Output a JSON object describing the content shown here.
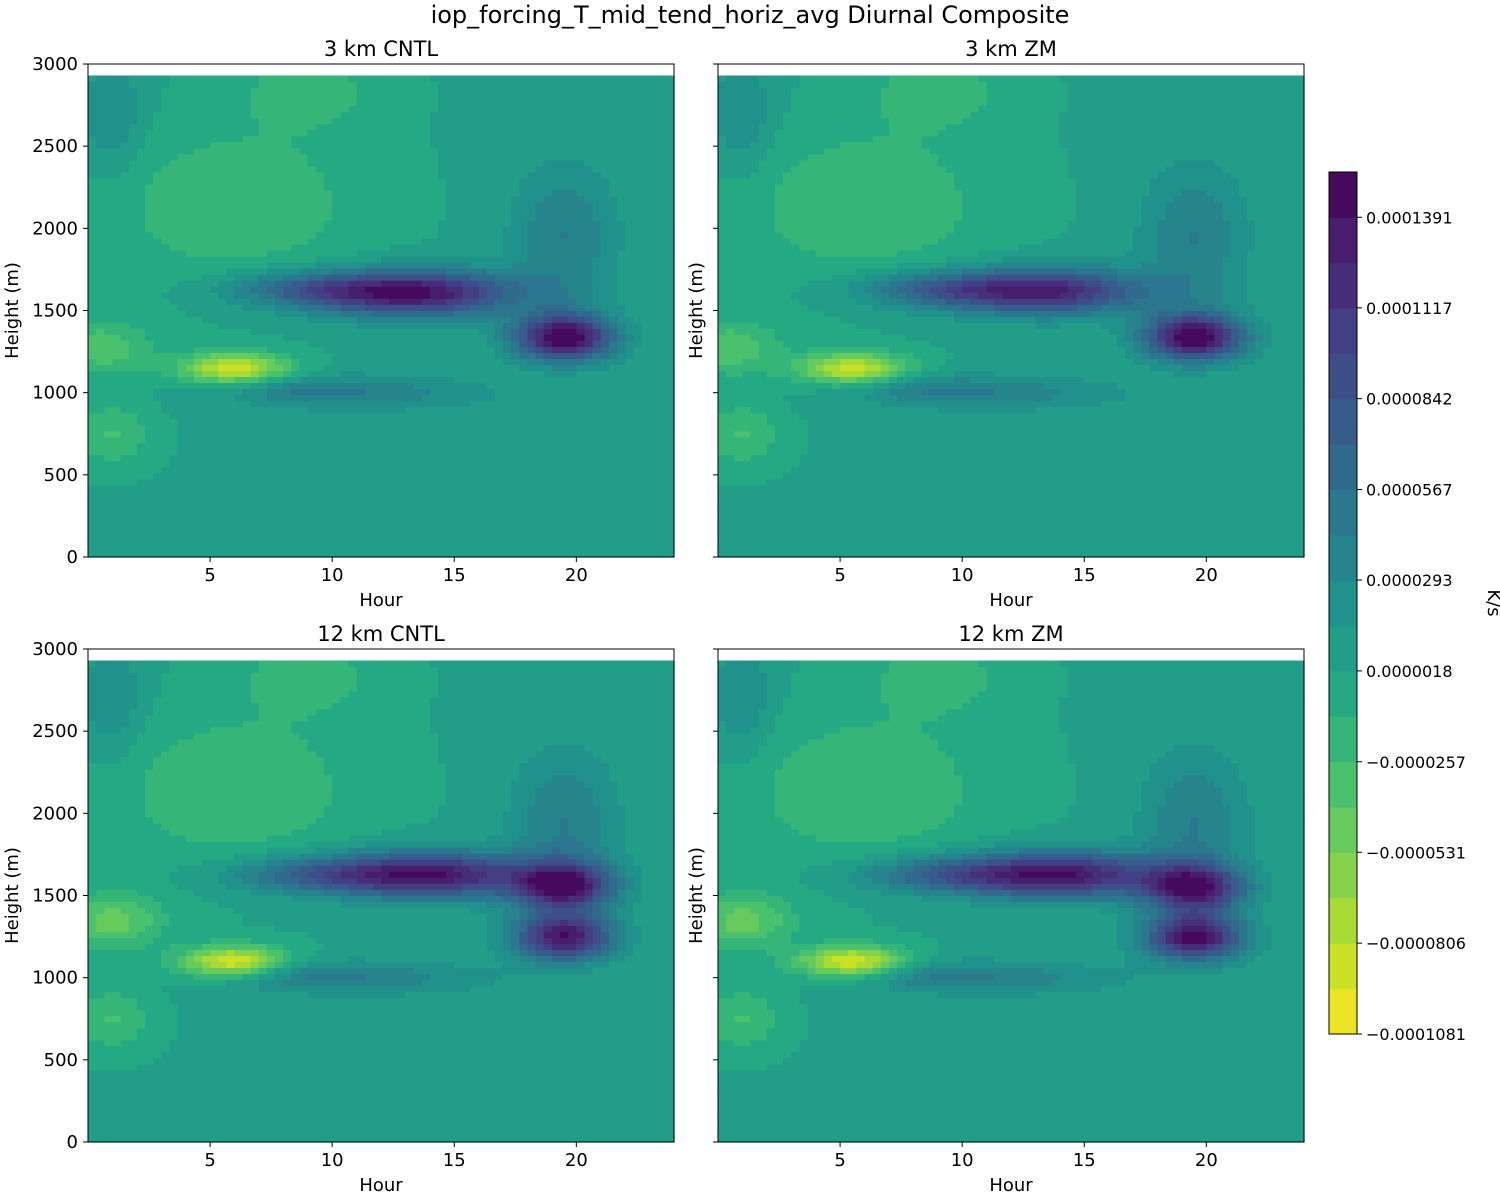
{
  "figure": {
    "title": "iop_forcing_T_mid_tend_horiz_avg Diurnal Composite"
  },
  "colorbar": {
    "label": "K/s",
    "tick_labels": [
      "0.0001391",
      "0.0001117",
      "0.0000842",
      "0.0000567",
      "0.0000293",
      "0.0000018",
      "−0.0000257",
      "−0.0000531",
      "−0.0000806",
      "−0.0001081"
    ],
    "levels_min": -0.0001081,
    "levels_max": 0.0001528,
    "n_bins": 19,
    "colormap": "viridis_r"
  },
  "chart_data": [
    {
      "type": "heatmap",
      "title": "3 km CNTL",
      "xlabel": "Hour",
      "ylabel": "Height (m)",
      "xlim": [
        0,
        24
      ],
      "ylim": [
        0,
        3000
      ],
      "x_ticks": [
        5,
        10,
        15,
        20
      ],
      "y_ticks": [
        0,
        500,
        1000,
        1500,
        2000,
        2500,
        3000
      ],
      "show_y_ticklabels": true,
      "data_top_height": 2930,
      "features": [
        {
          "kind": "warming_max",
          "hour": 13.5,
          "height": 1610,
          "value": 0.000135
        },
        {
          "kind": "warming_max",
          "hour": 19.5,
          "height": 1340,
          "value": 0.000148
        },
        {
          "kind": "cooling_min",
          "hour": 6.0,
          "height": 1150,
          "value": -9.5e-05
        },
        {
          "kind": "cooling_min",
          "hour": 0.5,
          "height": 1280,
          "value": -4e-05
        }
      ]
    },
    {
      "type": "heatmap",
      "title": "3 km ZM",
      "xlabel": "Hour",
      "ylabel": "Height (m)",
      "xlim": [
        0,
        24
      ],
      "ylim": [
        0,
        3000
      ],
      "x_ticks": [
        5,
        10,
        15,
        20
      ],
      "y_ticks": [
        0,
        500,
        1000,
        1500,
        2000,
        2500,
        3000
      ],
      "show_y_ticklabels": false,
      "data_top_height": 2930,
      "features": [
        {
          "kind": "warming_max",
          "hour": 13.5,
          "height": 1620,
          "value": 0.00012
        },
        {
          "kind": "warming_max",
          "hour": 19.5,
          "height": 1340,
          "value": 0.000148
        },
        {
          "kind": "cooling_min",
          "hour": 5.5,
          "height": 1150,
          "value": -9e-05
        },
        {
          "kind": "cooling_min",
          "hour": 0.5,
          "height": 1280,
          "value": -4e-05
        }
      ]
    },
    {
      "type": "heatmap",
      "title": "12 km CNTL",
      "xlabel": "Hour",
      "ylabel": "Height (m)",
      "xlim": [
        0,
        24
      ],
      "ylim": [
        0,
        3000
      ],
      "x_ticks": [
        5,
        10,
        15,
        20
      ],
      "y_ticks": [
        0,
        500,
        1000,
        1500,
        2000,
        2500,
        3000
      ],
      "show_y_ticklabels": true,
      "data_top_height": 2930,
      "features": [
        {
          "kind": "warming_max",
          "hour": 14.0,
          "height": 1630,
          "value": 0.000135
        },
        {
          "kind": "warming_max",
          "hour": 19.5,
          "height": 1560,
          "value": 0.00013
        },
        {
          "kind": "warming_max",
          "hour": 19.5,
          "height": 1250,
          "value": 0.000135
        },
        {
          "kind": "cooling_min",
          "hour": 6.0,
          "height": 1100,
          "value": -0.0001
        },
        {
          "kind": "cooling_min",
          "hour": 1.0,
          "height": 1350,
          "value": -5e-05
        }
      ]
    },
    {
      "type": "heatmap",
      "title": "12 km ZM",
      "xlabel": "Hour",
      "ylabel": "Height (m)",
      "xlim": [
        0,
        24
      ],
      "ylim": [
        0,
        3000
      ],
      "x_ticks": [
        5,
        10,
        15,
        20
      ],
      "y_ticks": [
        0,
        500,
        1000,
        1500,
        2000,
        2500,
        3000
      ],
      "show_y_ticklabels": false,
      "data_top_height": 2930,
      "features": [
        {
          "kind": "warming_max",
          "hour": 14.0,
          "height": 1630,
          "value": 0.000135
        },
        {
          "kind": "warming_max",
          "hour": 19.5,
          "height": 1550,
          "value": 0.000125
        },
        {
          "kind": "warming_max",
          "hour": 19.5,
          "height": 1250,
          "value": 0.00014
        },
        {
          "kind": "cooling_min",
          "hour": 5.5,
          "height": 1100,
          "value": -0.0001
        },
        {
          "kind": "cooling_min",
          "hour": 1.0,
          "height": 1350,
          "value": -5e-05
        }
      ]
    }
  ]
}
